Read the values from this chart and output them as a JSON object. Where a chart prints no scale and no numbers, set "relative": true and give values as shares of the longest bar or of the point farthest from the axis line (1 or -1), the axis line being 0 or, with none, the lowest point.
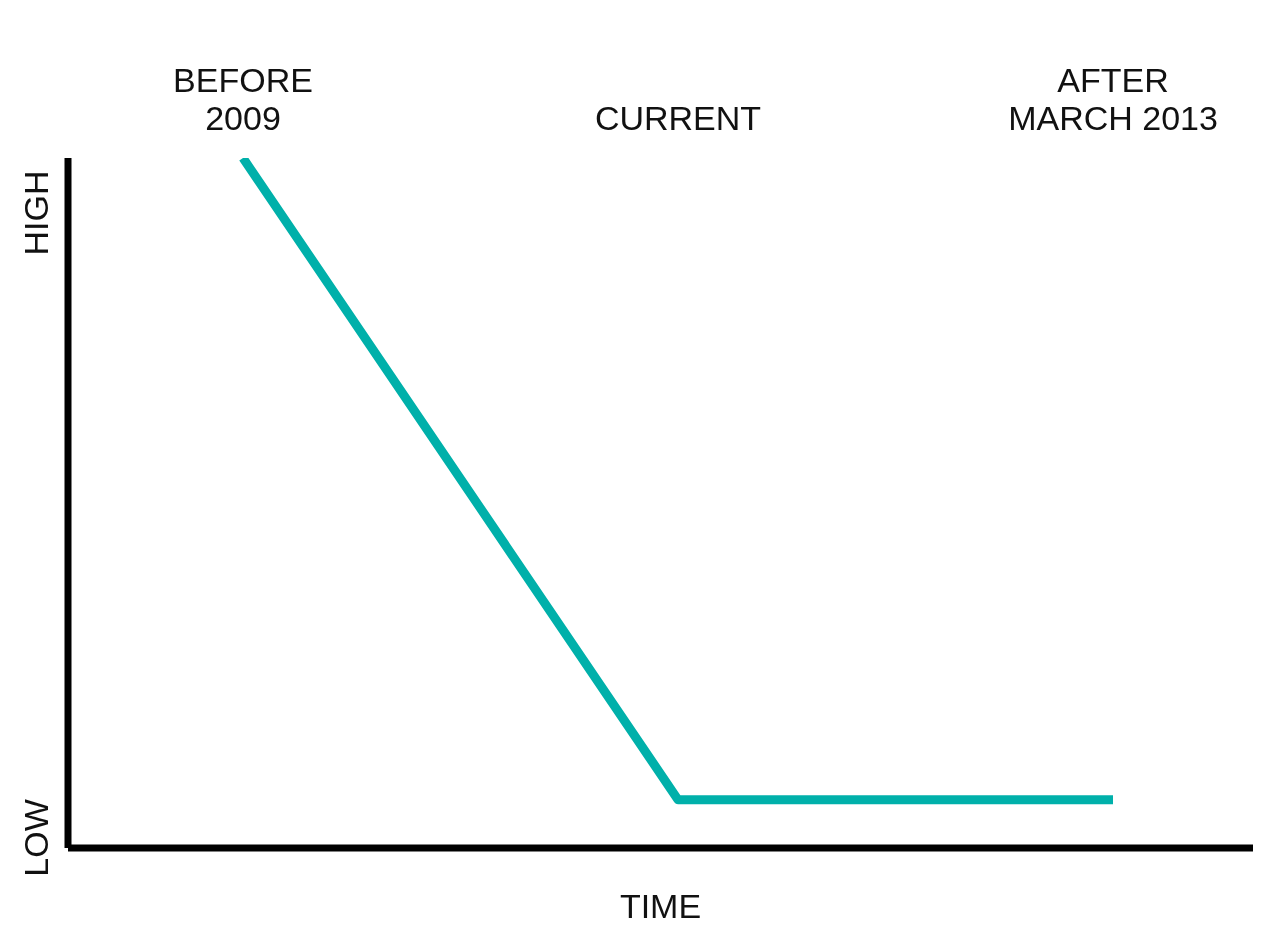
{
  "chart_data": {
    "type": "line",
    "relative": true,
    "categories": [
      "BEFORE\n2009",
      "CURRENT",
      "AFTER\nMARCH 2013"
    ],
    "series": [
      {
        "color": "#00b0aa",
        "values": [
          1,
          0.07,
          0.07
        ]
      }
    ],
    "xlabel": "TIME",
    "annotations": [
      "HIGH",
      "LOW"
    ],
    "grid": false,
    "legend": false,
    "marker": "none",
    "line_style": "solid"
  }
}
